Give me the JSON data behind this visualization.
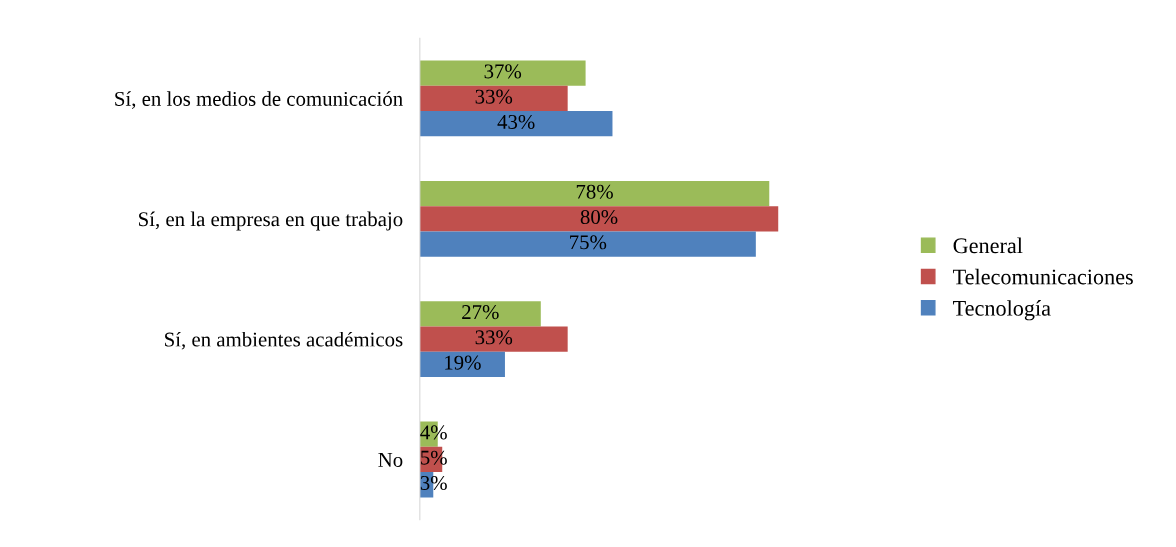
{
  "chart_data": {
    "type": "bar",
    "orientation": "horizontal",
    "legend": "right",
    "grid": false,
    "categories": [
      "Sí, en los medios de comunicación",
      "Sí, en la empresa en que trabajo",
      "Sí, en ambientes académicos",
      "No"
    ],
    "series": [
      {
        "name": "General",
        "color": "#9bbb59",
        "values": [
          37,
          78,
          27,
          4
        ],
        "value_labels": [
          "37%",
          "78%",
          "27%",
          "4%"
        ]
      },
      {
        "name": "Telecomunicaciones",
        "color": "#c0504d",
        "values": [
          33,
          80,
          33,
          5
        ],
        "value_labels": [
          "33%",
          "80%",
          "33%",
          "5%"
        ]
      },
      {
        "name": "Tecnología",
        "color": "#4f81bd",
        "values": [
          43,
          75,
          19,
          3
        ],
        "value_labels": [
          "43%",
          "75%",
          "19%",
          "3%"
        ]
      }
    ]
  }
}
